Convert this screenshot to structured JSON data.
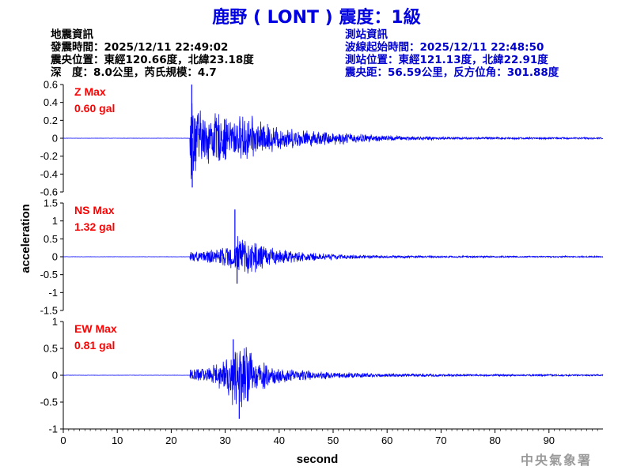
{
  "title": "鹿野 ( LONT ) 震度：1級",
  "quake_info": {
    "heading": "地震資訊",
    "origin_time": "發震時間：2025/12/11 22:49:02",
    "epicenter": "震央位置：東經120.66度，北緯23.18度",
    "depth_magnitude": "深　度：8.0公里，芮氏規模：4.7"
  },
  "station_info": {
    "heading": "測站資訊",
    "wave_start": "波線起始時間：2025/12/11 22:48:50",
    "location": "測站位置：東經121.13度，北緯22.91度",
    "distance": "震央距：56.59公里，反方位角：301.88度"
  },
  "agency": "中央氣象署",
  "chart_data": [
    {
      "type": "line",
      "label": "Z Max",
      "max_text": "0.60 gal",
      "ylim": [
        -0.6,
        0.6
      ],
      "yticks": [
        -0.6,
        -0.4,
        -0.2,
        0,
        0.2,
        0.4,
        0.6
      ],
      "ytick_labels": [
        "-0.6",
        "-0.4",
        "-0.2",
        "0",
        "0.2",
        "0.4",
        "0.6"
      ],
      "xlim": [
        0,
        100
      ],
      "onset_s": 23.5,
      "peak": 0.6,
      "trough": -0.55,
      "envelope": [
        [
          23.5,
          0.6
        ],
        [
          24,
          0.5
        ],
        [
          25,
          0.38
        ],
        [
          26,
          0.3
        ],
        [
          28,
          0.32
        ],
        [
          30,
          0.28
        ],
        [
          32,
          0.25
        ],
        [
          34,
          0.3
        ],
        [
          36,
          0.22
        ],
        [
          38,
          0.18
        ],
        [
          40,
          0.15
        ],
        [
          42,
          0.12
        ],
        [
          45,
          0.1
        ],
        [
          48,
          0.09
        ],
        [
          52,
          0.07
        ],
        [
          56,
          0.05
        ],
        [
          60,
          0.035
        ],
        [
          65,
          0.025
        ],
        [
          70,
          0.018
        ],
        [
          80,
          0.014
        ],
        [
          90,
          0.012
        ],
        [
          100,
          0.01
        ]
      ]
    },
    {
      "type": "line",
      "label": "NS Max",
      "max_text": "1.32 gal",
      "ylim": [
        -1.5,
        1.5
      ],
      "yticks": [
        -1.5,
        -1,
        -0.5,
        0,
        0.5,
        1,
        1.5
      ],
      "ytick_labels": [
        "-1.5",
        "-1",
        "-0.5",
        "0",
        "0.5",
        "1",
        "1.5"
      ],
      "xlim": [
        0,
        100
      ],
      "onset_s": 23.5,
      "peak": 1.32,
      "trough": -0.75,
      "envelope": [
        [
          23.5,
          0.15
        ],
        [
          26,
          0.18
        ],
        [
          28,
          0.22
        ],
        [
          30,
          0.3
        ],
        [
          31.5,
          0.4
        ],
        [
          32,
          0.75
        ],
        [
          33,
          0.5
        ],
        [
          34,
          0.55
        ],
        [
          36,
          0.45
        ],
        [
          38,
          0.3
        ],
        [
          40,
          0.25
        ],
        [
          42,
          0.2
        ],
        [
          45,
          0.14
        ],
        [
          48,
          0.1
        ],
        [
          52,
          0.07
        ],
        [
          56,
          0.05
        ],
        [
          60,
          0.04
        ],
        [
          70,
          0.03
        ],
        [
          80,
          0.025
        ],
        [
          90,
          0.02
        ],
        [
          100,
          0.02
        ]
      ]
    },
    {
      "type": "line",
      "label": "EW Max",
      "max_text": "0.81 gal",
      "ylim": [
        -1,
        1
      ],
      "yticks": [
        -1,
        -0.5,
        0,
        0.5,
        1
      ],
      "ytick_labels": [
        "-1",
        "-0.5",
        "0",
        "0.5",
        "1"
      ],
      "xlim": [
        0,
        100
      ],
      "onset_s": 23.5,
      "peak": 0.67,
      "trough": -0.81,
      "envelope": [
        [
          23.5,
          0.12
        ],
        [
          26,
          0.15
        ],
        [
          28,
          0.22
        ],
        [
          30,
          0.35
        ],
        [
          31.5,
          0.65
        ],
        [
          32.5,
          0.6
        ],
        [
          34,
          0.62
        ],
        [
          35,
          0.5
        ],
        [
          36,
          0.35
        ],
        [
          38,
          0.25
        ],
        [
          40,
          0.18
        ],
        [
          42,
          0.14
        ],
        [
          45,
          0.1
        ],
        [
          48,
          0.08
        ],
        [
          52,
          0.06
        ],
        [
          56,
          0.045
        ],
        [
          60,
          0.035
        ],
        [
          70,
          0.025
        ],
        [
          80,
          0.02
        ],
        [
          90,
          0.018
        ],
        [
          100,
          0.015
        ]
      ]
    }
  ],
  "x_axis": {
    "label": "second",
    "ticks": [
      0,
      10,
      20,
      30,
      40,
      50,
      60,
      70,
      80,
      90
    ],
    "tick_labels": [
      "0",
      "10",
      "20",
      "30",
      "40",
      "50",
      "60",
      "70",
      "80",
      "90"
    ]
  },
  "y_axis_label": "acceleration",
  "colors": {
    "trace": "#0000ff",
    "label": "#ff0000",
    "title": "#0000e0",
    "station_text": "#0000cc",
    "axis": "#000000",
    "agency": "#9a9a9a"
  }
}
